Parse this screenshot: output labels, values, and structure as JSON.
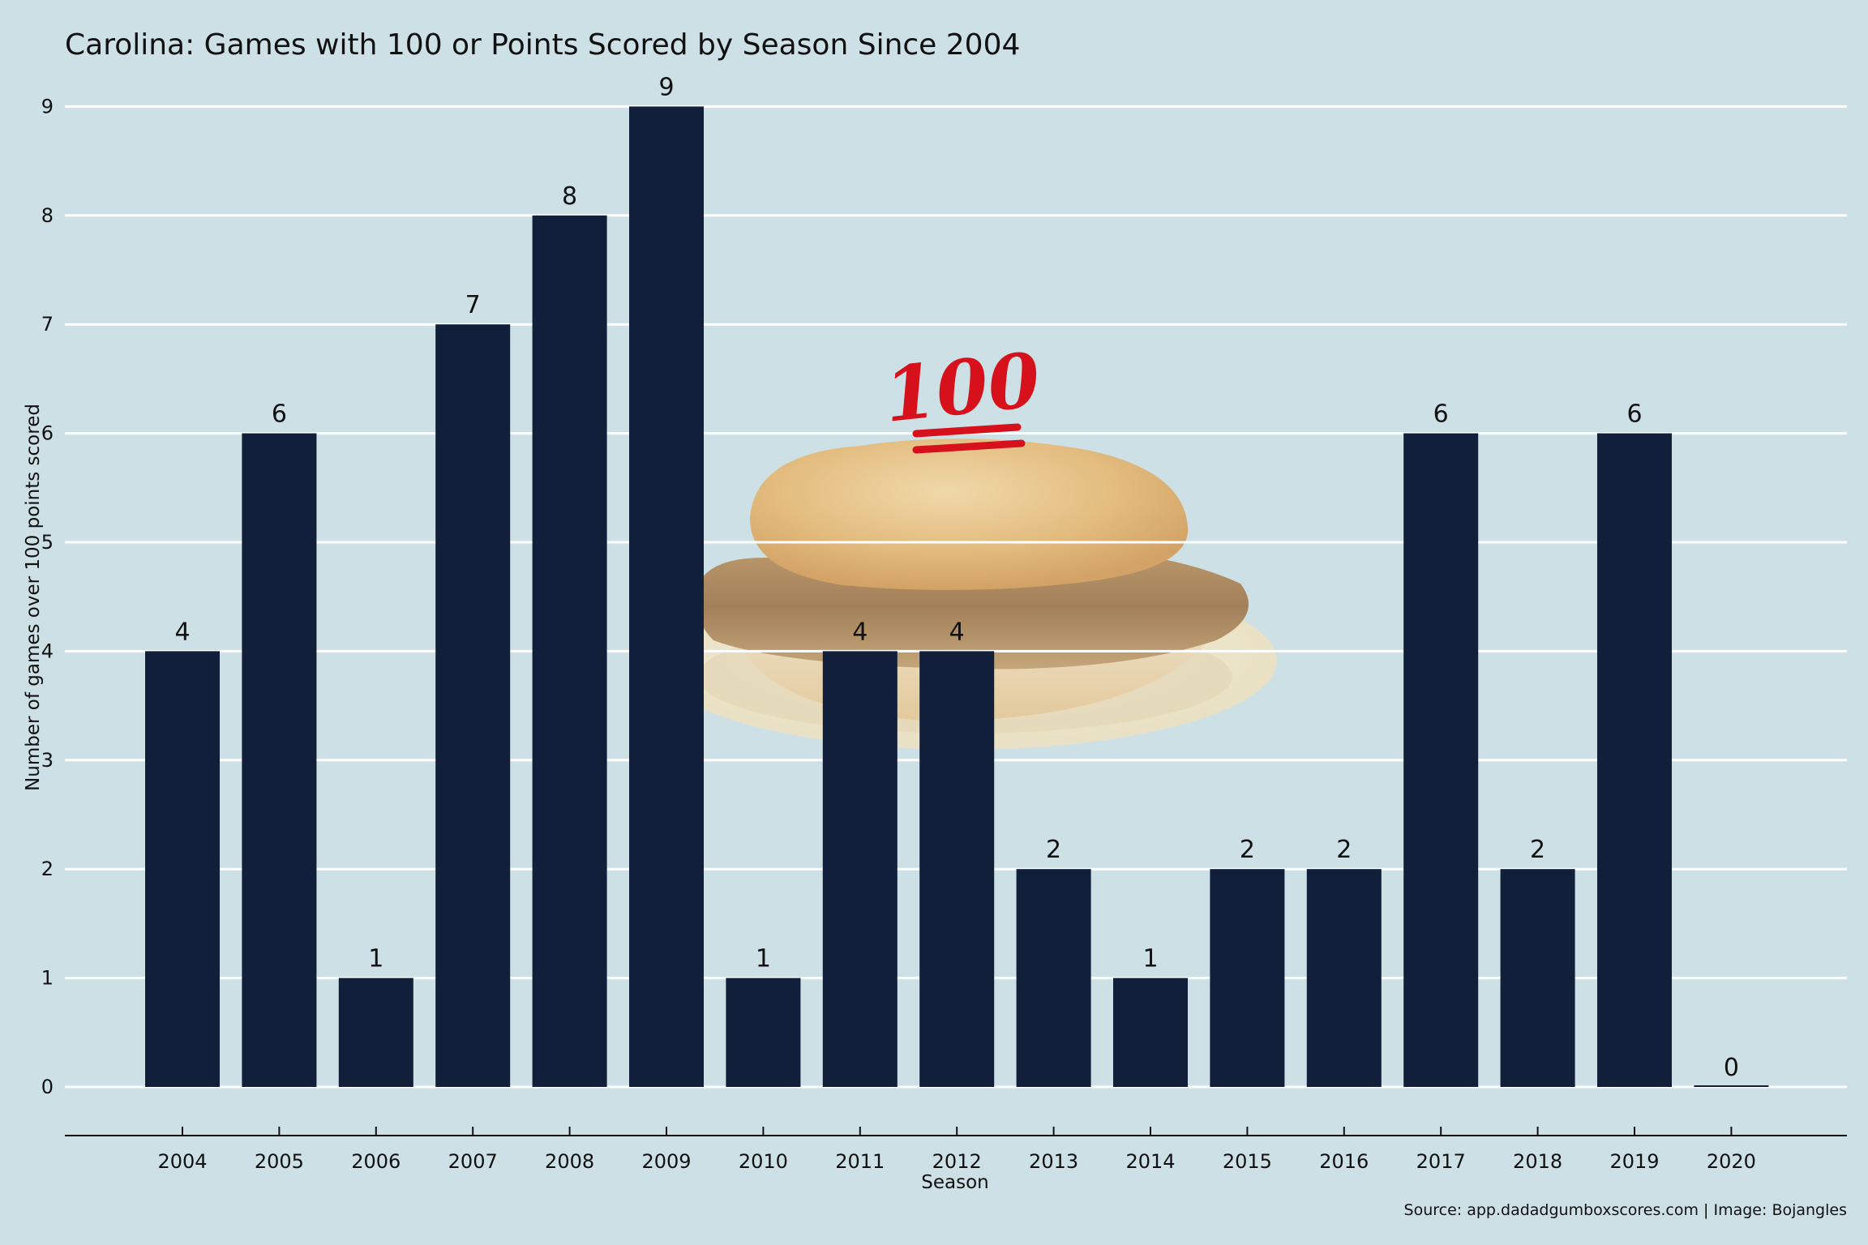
{
  "chart_data": {
    "type": "bar",
    "title": "Carolina: Games with 100 or Points Scored by Season Since 2004",
    "xlabel": "Season",
    "ylabel": "Number of games over 100 points scored",
    "categories": [
      "2004",
      "2005",
      "2006",
      "2007",
      "2008",
      "2009",
      "2010",
      "2011",
      "2012",
      "2013",
      "2014",
      "2015",
      "2016",
      "2017",
      "2018",
      "2019",
      "2020"
    ],
    "values": [
      4,
      6,
      1,
      7,
      8,
      9,
      1,
      4,
      4,
      2,
      1,
      2,
      2,
      6,
      2,
      6,
      0
    ],
    "ylim": [
      0,
      9
    ],
    "yticks": [
      0,
      1,
      2,
      3,
      4,
      5,
      6,
      7,
      8,
      9
    ],
    "grid": "horizontal",
    "caption": "Source: app.dadadgumboxscores.com | Image: Bojangles"
  },
  "colors": {
    "background": "#cde0e6",
    "bar": "#121f3a",
    "grid": "#ffffff",
    "emoji": "#d6111b"
  },
  "decorations": {
    "image": "biscuit-sandwich-picture",
    "emoji_icon": "hundred-points-emoji",
    "emoji_text": "100"
  }
}
